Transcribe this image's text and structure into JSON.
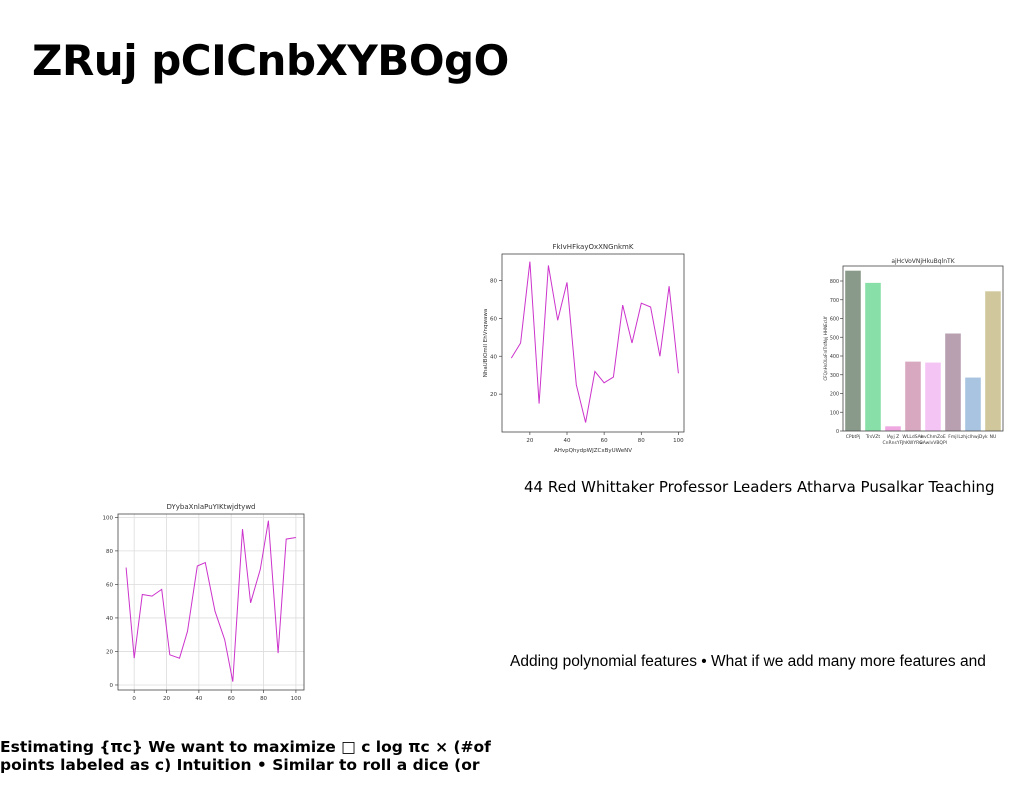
{
  "slide": {
    "title": "ZRuj pCICnbXYBOgO",
    "caption_top": "44 Red Whittaker Professor Leaders Atharva Pusalkar Teaching",
    "caption_bottom": "Adding polynomial features • What if we add many more features and",
    "body_line1": "Estimating {πc} We want to maximize □ c log πc × (#of",
    "body_line2": "points labeled as c) Intuition • Similar to roll a dice (or"
  },
  "chart_data": [
    {
      "id": "line1",
      "type": "line",
      "title": "FkIvHFkayOxXNGnkmK",
      "xlabel": "AHvpQhydpWJZCxByUWeNV",
      "ylabel": "NhaUBiOmII EhVnqwawa",
      "color": "#cc33cc",
      "grid": false,
      "xlim": [
        5,
        103
      ],
      "ylim": [
        0,
        94
      ],
      "xticks": [
        20,
        40,
        60,
        80,
        100
      ],
      "yticks": [
        20,
        40,
        60,
        80
      ],
      "x": [
        10,
        15,
        20,
        25,
        30,
        35,
        40,
        45,
        50,
        55,
        60,
        65,
        70,
        75,
        80,
        85,
        90,
        95,
        100
      ],
      "y": [
        39,
        47,
        90,
        15,
        88,
        59,
        79,
        25,
        5,
        32,
        26,
        29,
        67,
        47,
        68,
        66,
        40,
        77,
        31
      ]
    },
    {
      "id": "bar1",
      "type": "bar",
      "title": "ajHcVoVNjHkuBqlnTK",
      "xlabel": "",
      "ylabel": "CFQnHsOLoFnITrdNyj HHNEcUf",
      "grid": false,
      "ylim": [
        0,
        880
      ],
      "yticks": [
        0,
        100,
        200,
        300,
        400,
        500,
        600,
        700,
        800
      ],
      "categories": [
        "CPbtPj",
        "TrsVZt",
        "lAyj Z\nCnRnsYFJ",
        "WLLdSAh\nhKWYRG",
        "wvChmZoE\nwAwlvVBQPl",
        "Fmjl",
        "LzhjclhwjDyk",
        "NU"
      ],
      "values": [
        855,
        790,
        25,
        370,
        365,
        520,
        285,
        745
      ],
      "colors": [
        "#8a9a8a",
        "#88e0a8",
        "#f0a8e0",
        "#d8a8c0",
        "#f4c4f4",
        "#b8a0b0",
        "#a8c4e0",
        "#d0c89c"
      ]
    },
    {
      "id": "line2",
      "type": "line",
      "title": "DYybaXnlaPuYIKtwjdtywd",
      "xlabel": "",
      "ylabel": "",
      "color": "#cc33cc",
      "grid": true,
      "xlim": [
        -10,
        105
      ],
      "ylim": [
        -3,
        102
      ],
      "xticks": [
        0,
        20,
        40,
        60,
        80,
        100
      ],
      "yticks": [
        0,
        20,
        40,
        60,
        80,
        100
      ],
      "x": [
        -5,
        0,
        5,
        11,
        17,
        22,
        28,
        33,
        39,
        44,
        50,
        56,
        61,
        67,
        72,
        78,
        83,
        89,
        94,
        100
      ],
      "y": [
        70,
        16,
        54,
        53,
        57,
        18,
        16,
        32,
        71,
        73,
        44,
        27,
        2,
        93,
        49,
        69,
        98,
        19,
        87,
        88
      ]
    }
  ]
}
